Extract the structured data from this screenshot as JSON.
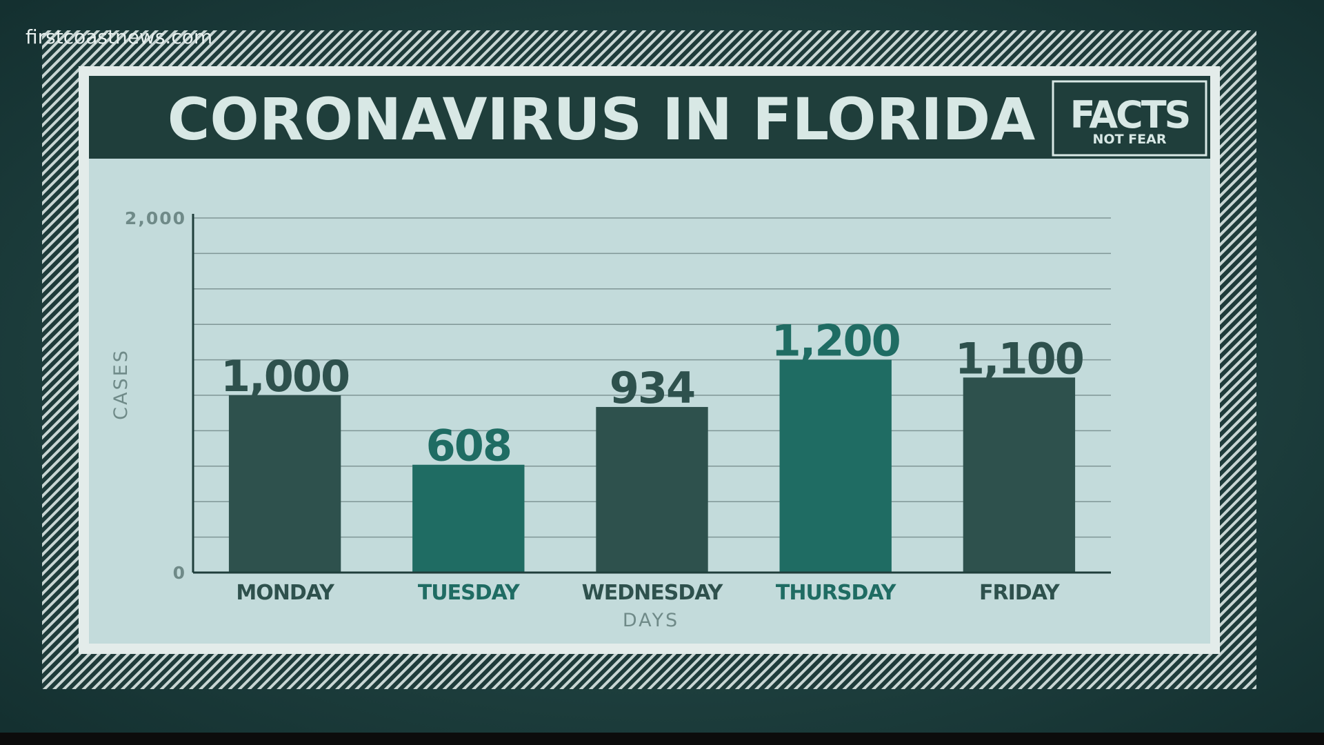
{
  "watermark": "firstcoastnews.com",
  "badge": {
    "title": "FACTS",
    "subtitle": "NOT FEAR"
  },
  "chart_data": {
    "type": "bar",
    "title": "CORONAVIRUS IN FLORIDA",
    "x_label": "DAYS",
    "y_label": "CASES",
    "categories": [
      "MONDAY",
      "TUESDAY",
      "WEDNESDAY",
      "THURSDAY",
      "FRIDAY"
    ],
    "values": [
      1000,
      608,
      934,
      1200,
      1100
    ],
    "value_labels": [
      "1,000",
      "608",
      "934",
      "1,200",
      "1,100"
    ],
    "colors": [
      "#2e514d",
      "#1f6c63",
      "#2e514d",
      "#1f6c63",
      "#2e514d"
    ],
    "ylim": [
      0,
      2000
    ],
    "yticks": [
      0,
      {
        "value": 2000,
        "label": "2,000"
      }
    ],
    "grid": true,
    "grid_yticks": [
      200,
      400,
      600,
      800,
      1000,
      1200,
      1400,
      1600,
      1800,
      2000
    ]
  }
}
